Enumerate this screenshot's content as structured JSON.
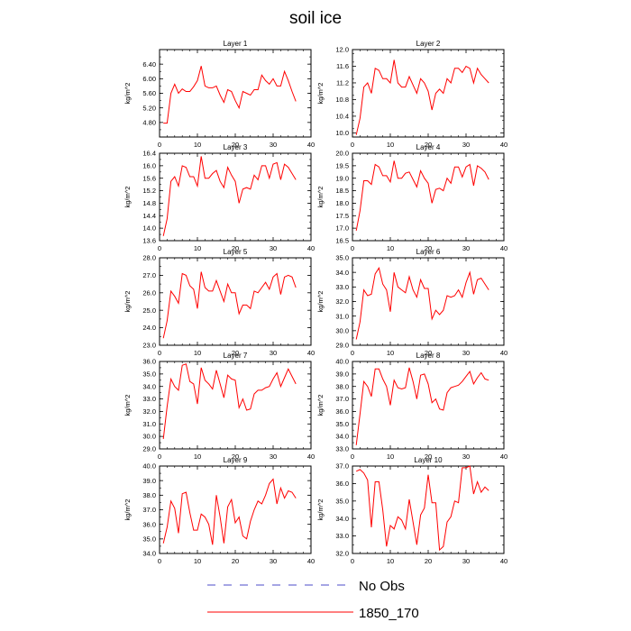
{
  "figure": {
    "title": "soil ice",
    "legend": [
      {
        "label": "No Obs",
        "style": "dashed",
        "color": "#4b4bc8"
      },
      {
        "label": "1850_170",
        "style": "solid",
        "color": "#ff0000"
      }
    ]
  },
  "chart_data": [
    {
      "type": "line",
      "title": "Layer 1",
      "ylabel": "kg/m^2",
      "xlim": [
        0,
        40
      ],
      "ylim": [
        4.4,
        6.8
      ],
      "xticks": [
        "0",
        "10",
        "20",
        "30",
        "40"
      ],
      "yticks": [
        "4.80",
        "5.20",
        "5.60",
        "6.00",
        "6.40"
      ],
      "grid": false,
      "line_color": "#ff0000",
      "series": [
        {
          "name": "1850_170",
          "x": [
            1,
            2,
            3,
            4,
            5,
            6,
            7,
            8,
            9,
            10,
            11,
            12,
            13,
            14,
            15,
            16,
            17,
            18,
            19,
            20,
            21,
            22,
            23,
            24,
            25,
            26,
            27,
            28,
            29,
            30,
            31,
            32,
            33,
            34,
            35,
            36
          ],
          "y": [
            4.78,
            4.78,
            5.6,
            5.85,
            5.6,
            5.72,
            5.65,
            5.65,
            5.78,
            5.95,
            6.35,
            5.8,
            5.75,
            5.75,
            5.8,
            5.55,
            5.35,
            5.7,
            5.65,
            5.4,
            5.2,
            5.65,
            5.6,
            5.55,
            5.7,
            5.7,
            6.1,
            5.95,
            5.85,
            6.0,
            5.8,
            5.8,
            6.2,
            5.95,
            5.65,
            5.38
          ]
        }
      ]
    },
    {
      "type": "line",
      "title": "Layer 2",
      "ylabel": "kg/m^2",
      "xlim": [
        0,
        40
      ],
      "ylim": [
        9.9,
        12.0
      ],
      "xticks": [
        "0",
        "10",
        "20",
        "30",
        "40"
      ],
      "yticks": [
        "10.0",
        "10.4",
        "10.8",
        "11.2",
        "11.6",
        "12.0"
      ],
      "grid": false,
      "line_color": "#ff0000",
      "series": [
        {
          "name": "1850_170",
          "x": [
            1,
            2,
            3,
            4,
            5,
            6,
            7,
            8,
            9,
            10,
            11,
            12,
            13,
            14,
            15,
            16,
            17,
            18,
            19,
            20,
            21,
            22,
            23,
            24,
            25,
            26,
            27,
            28,
            29,
            30,
            31,
            32,
            33,
            34,
            35,
            36
          ],
          "y": [
            9.95,
            10.35,
            11.1,
            11.2,
            10.95,
            11.55,
            11.5,
            11.3,
            11.3,
            11.2,
            11.75,
            11.2,
            11.1,
            11.1,
            11.35,
            11.15,
            10.95,
            11.3,
            11.2,
            11.0,
            10.55,
            10.95,
            11.05,
            10.95,
            11.3,
            11.2,
            11.55,
            11.55,
            11.45,
            11.6,
            11.55,
            11.2,
            11.55,
            11.4,
            11.3,
            11.2
          ]
        }
      ]
    },
    {
      "type": "line",
      "title": "Layer 3",
      "ylabel": "kg/m^2",
      "xlim": [
        0,
        40
      ],
      "ylim": [
        13.6,
        16.4
      ],
      "xticks": [
        "0",
        "10",
        "20",
        "30",
        "40"
      ],
      "yticks": [
        "13.6",
        "14.0",
        "14.4",
        "14.8",
        "15.2",
        "15.6",
        "16.0",
        "16.4"
      ],
      "grid": false,
      "line_color": "#ff0000",
      "series": [
        {
          "name": "1850_170",
          "x": [
            1,
            2,
            3,
            4,
            5,
            6,
            7,
            8,
            9,
            10,
            11,
            12,
            13,
            14,
            15,
            16,
            17,
            18,
            19,
            20,
            21,
            22,
            23,
            24,
            25,
            26,
            27,
            28,
            29,
            30,
            31,
            32,
            33,
            34,
            35,
            36
          ],
          "y": [
            13.75,
            14.3,
            15.5,
            15.65,
            15.35,
            16.0,
            15.95,
            15.65,
            15.65,
            15.35,
            16.3,
            15.6,
            15.6,
            15.75,
            15.85,
            15.5,
            15.3,
            15.95,
            15.7,
            15.5,
            14.8,
            15.25,
            15.3,
            15.25,
            15.7,
            15.55,
            16.0,
            16.0,
            15.6,
            16.05,
            16.1,
            15.55,
            16.05,
            15.95,
            15.75,
            15.55
          ]
        }
      ]
    },
    {
      "type": "line",
      "title": "Layer 4",
      "ylabel": "kg/m^2",
      "xlim": [
        0,
        40
      ],
      "ylim": [
        16.5,
        20.0
      ],
      "xticks": [
        "0",
        "10",
        "20",
        "30",
        "40"
      ],
      "yticks": [
        "16.5",
        "17.0",
        "17.5",
        "18.0",
        "18.5",
        "19.0",
        "19.5",
        "20.0"
      ],
      "grid": false,
      "line_color": "#ff0000",
      "series": [
        {
          "name": "1850_170",
          "x": [
            1,
            2,
            3,
            4,
            5,
            6,
            7,
            8,
            9,
            10,
            11,
            12,
            13,
            14,
            15,
            16,
            17,
            18,
            19,
            20,
            21,
            22,
            23,
            24,
            25,
            26,
            27,
            28,
            29,
            30,
            31,
            32,
            33,
            34,
            35,
            36
          ],
          "y": [
            16.9,
            17.7,
            18.9,
            18.9,
            18.75,
            19.55,
            19.45,
            19.1,
            19.1,
            18.85,
            19.7,
            19.0,
            19.0,
            19.2,
            19.25,
            18.95,
            18.65,
            19.3,
            19.0,
            18.8,
            18.0,
            18.55,
            18.6,
            18.5,
            19.0,
            18.8,
            19.45,
            19.45,
            19.05,
            19.45,
            19.55,
            18.7,
            19.5,
            19.4,
            19.25,
            18.95
          ]
        }
      ]
    },
    {
      "type": "line",
      "title": "Layer 5",
      "ylabel": "kg/m^2",
      "xlim": [
        0,
        40
      ],
      "ylim": [
        23.0,
        28.0
      ],
      "xticks": [
        "0",
        "10",
        "20",
        "30",
        "40"
      ],
      "yticks": [
        "23.0",
        "24.0",
        "25.0",
        "26.0",
        "27.0",
        "28.0"
      ],
      "grid": false,
      "line_color": "#ff0000",
      "series": [
        {
          "name": "1850_170",
          "x": [
            1,
            2,
            3,
            4,
            5,
            6,
            7,
            8,
            9,
            10,
            11,
            12,
            13,
            14,
            15,
            16,
            17,
            18,
            19,
            20,
            21,
            22,
            23,
            24,
            25,
            26,
            27,
            28,
            29,
            30,
            31,
            32,
            33,
            34,
            35,
            36
          ],
          "y": [
            23.4,
            24.4,
            26.1,
            25.8,
            25.4,
            27.1,
            27.0,
            26.4,
            26.2,
            25.1,
            27.2,
            26.3,
            26.1,
            26.1,
            26.7,
            26.1,
            25.5,
            26.5,
            26.0,
            26.0,
            24.8,
            25.3,
            25.3,
            25.1,
            26.1,
            26.0,
            26.3,
            26.6,
            26.2,
            26.9,
            27.1,
            25.9,
            26.9,
            27.0,
            26.9,
            26.3
          ]
        }
      ]
    },
    {
      "type": "line",
      "title": "Layer 6",
      "ylabel": "kg/m^2",
      "xlim": [
        0,
        40
      ],
      "ylim": [
        29.0,
        35.0
      ],
      "xticks": [
        "0",
        "10",
        "20",
        "30",
        "40"
      ],
      "yticks": [
        "29.0",
        "30.0",
        "31.0",
        "32.0",
        "33.0",
        "34.0",
        "35.0"
      ],
      "grid": false,
      "line_color": "#ff0000",
      "series": [
        {
          "name": "1850_170",
          "x": [
            1,
            2,
            3,
            4,
            5,
            6,
            7,
            8,
            9,
            10,
            11,
            12,
            13,
            14,
            15,
            16,
            17,
            18,
            19,
            20,
            21,
            22,
            23,
            24,
            25,
            26,
            27,
            28,
            29,
            30,
            31,
            32,
            33,
            34,
            35,
            36
          ],
          "y": [
            29.4,
            30.6,
            32.8,
            32.4,
            32.5,
            33.9,
            34.3,
            33.2,
            32.8,
            31.3,
            34.0,
            33.0,
            32.8,
            32.6,
            33.7,
            32.8,
            32.3,
            33.5,
            32.9,
            32.9,
            30.8,
            31.4,
            31.1,
            31.4,
            32.4,
            32.3,
            32.4,
            32.8,
            32.3,
            33.3,
            34.0,
            32.5,
            33.5,
            33.6,
            33.2,
            32.8
          ]
        }
      ]
    },
    {
      "type": "line",
      "title": "Layer 7",
      "ylabel": "kg/m^2",
      "xlim": [
        0,
        40
      ],
      "ylim": [
        29.0,
        36.0
      ],
      "xticks": [
        "0",
        "10",
        "20",
        "30",
        "40"
      ],
      "yticks": [
        "29.0",
        "30.0",
        "31.0",
        "32.0",
        "33.0",
        "34.0",
        "35.0",
        "36.0"
      ],
      "grid": false,
      "line_color": "#ff0000",
      "series": [
        {
          "name": "1850_170",
          "x": [
            1,
            2,
            3,
            4,
            5,
            6,
            7,
            8,
            9,
            10,
            11,
            12,
            13,
            14,
            15,
            16,
            17,
            18,
            19,
            20,
            21,
            22,
            23,
            24,
            25,
            26,
            27,
            28,
            29,
            30,
            31,
            32,
            33,
            34,
            35,
            36
          ],
          "y": [
            29.8,
            32.4,
            34.6,
            34.0,
            33.7,
            35.7,
            35.8,
            34.4,
            34.2,
            32.6,
            35.5,
            34.5,
            34.2,
            33.8,
            35.3,
            34.2,
            33.1,
            34.9,
            34.6,
            34.5,
            32.3,
            33.0,
            32.1,
            32.2,
            33.4,
            33.7,
            33.7,
            33.9,
            34.0,
            34.6,
            35.1,
            34.0,
            34.7,
            35.4,
            34.8,
            34.2
          ]
        }
      ]
    },
    {
      "type": "line",
      "title": "Layer 8",
      "ylabel": "kg/m^2",
      "xlim": [
        0,
        40
      ],
      "ylim": [
        33.0,
        40.0
      ],
      "xticks": [
        "0",
        "10",
        "20",
        "30",
        "40"
      ],
      "yticks": [
        "33.0",
        "34.0",
        "35.0",
        "36.0",
        "37.0",
        "38.0",
        "39.0",
        "40.0"
      ],
      "grid": false,
      "line_color": "#ff0000",
      "series": [
        {
          "name": "1850_170",
          "x": [
            1,
            2,
            3,
            4,
            5,
            6,
            7,
            8,
            9,
            10,
            11,
            12,
            13,
            14,
            15,
            16,
            17,
            18,
            19,
            20,
            21,
            22,
            23,
            24,
            25,
            26,
            27,
            28,
            29,
            30,
            31,
            32,
            33,
            34,
            35,
            36
          ],
          "y": [
            33.3,
            35.8,
            38.4,
            38.0,
            37.2,
            39.4,
            39.4,
            38.6,
            38.0,
            36.5,
            38.5,
            37.9,
            37.8,
            37.9,
            39.5,
            38.4,
            37.0,
            38.9,
            39.0,
            38.2,
            36.7,
            37.0,
            36.2,
            36.1,
            37.5,
            37.9,
            38.0,
            38.1,
            38.4,
            38.8,
            39.2,
            38.2,
            38.7,
            39.1,
            38.6,
            38.5
          ]
        }
      ]
    },
    {
      "type": "line",
      "title": "Layer 9",
      "ylabel": "kg/m^2",
      "xlim": [
        0,
        40
      ],
      "ylim": [
        34.0,
        40.0
      ],
      "xticks": [
        "0",
        "10",
        "20",
        "30",
        "40"
      ],
      "yticks": [
        "34.0",
        "35.0",
        "36.0",
        "37.0",
        "38.0",
        "39.0",
        "40.0"
      ],
      "grid": false,
      "line_color": "#ff0000",
      "series": [
        {
          "name": "1850_170",
          "x": [
            1,
            2,
            3,
            4,
            5,
            6,
            7,
            8,
            9,
            10,
            11,
            12,
            13,
            14,
            15,
            16,
            17,
            18,
            19,
            20,
            21,
            22,
            23,
            24,
            25,
            26,
            27,
            28,
            29,
            30,
            31,
            32,
            33,
            34,
            35,
            36
          ],
          "y": [
            34.7,
            35.8,
            37.6,
            37.1,
            35.4,
            38.1,
            38.2,
            36.8,
            35.6,
            35.6,
            36.7,
            36.5,
            36.0,
            34.6,
            38.0,
            36.5,
            34.7,
            37.2,
            37.7,
            36.1,
            36.5,
            35.2,
            35.0,
            36.2,
            37.0,
            37.6,
            37.4,
            38.0,
            38.8,
            39.1,
            37.4,
            38.5,
            37.8,
            38.3,
            38.2,
            37.8
          ]
        }
      ]
    },
    {
      "type": "line",
      "title": "Layer 10",
      "ylabel": "kg/m^2",
      "xlim": [
        0,
        40
      ],
      "ylim": [
        32.0,
        37.0
      ],
      "xticks": [
        "0",
        "10",
        "20",
        "30",
        "40"
      ],
      "yticks": [
        "32.0",
        "33.0",
        "34.0",
        "35.0",
        "36.0",
        "37.0"
      ],
      "grid": false,
      "line_color": "#ff0000",
      "series": [
        {
          "name": "1850_170",
          "x": [
            1,
            2,
            3,
            4,
            5,
            6,
            7,
            8,
            9,
            10,
            11,
            12,
            13,
            14,
            15,
            16,
            17,
            18,
            19,
            20,
            21,
            22,
            23,
            24,
            25,
            26,
            27,
            28,
            29,
            30,
            31,
            32,
            33,
            34,
            35,
            36
          ],
          "y": [
            36.7,
            36.8,
            36.6,
            36.2,
            33.5,
            36.1,
            36.1,
            34.5,
            32.4,
            33.6,
            33.4,
            34.1,
            33.9,
            33.4,
            35.1,
            33.8,
            32.5,
            34.2,
            34.6,
            36.5,
            34.9,
            34.9,
            32.2,
            32.4,
            33.8,
            34.1,
            35.0,
            34.9,
            36.9,
            36.9,
            37.0,
            35.4,
            36.1,
            35.5,
            35.8,
            35.6
          ]
        }
      ]
    }
  ]
}
